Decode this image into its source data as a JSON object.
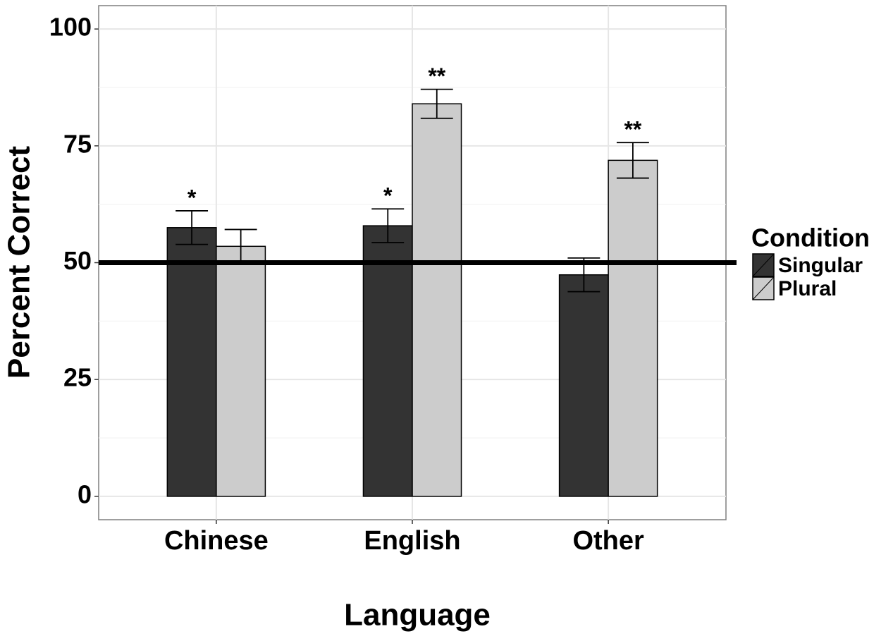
{
  "chart_data": {
    "type": "bar",
    "x_label": "Language",
    "y_label": "Percent Correct",
    "categories": [
      "Chinese",
      "English",
      "Other"
    ],
    "series": [
      {
        "name": "Singular",
        "color": "#333333",
        "values": [
          57.5,
          57.9,
          47.4
        ],
        "errors": [
          3.6,
          3.6,
          3.6
        ],
        "significance": [
          "*",
          "*",
          null
        ]
      },
      {
        "name": "Plural",
        "color": "#cccccc",
        "values": [
          53.5,
          84.0,
          71.9
        ],
        "errors": [
          3.6,
          3.1,
          3.8
        ],
        "significance": [
          null,
          "**",
          "**"
        ]
      }
    ],
    "ylim": [
      -5,
      105
    ],
    "yticks": [
      0,
      25,
      50,
      75,
      100
    ],
    "reference_line": 50,
    "grid": true,
    "legend_title": "Condition",
    "legend_position": "right"
  }
}
